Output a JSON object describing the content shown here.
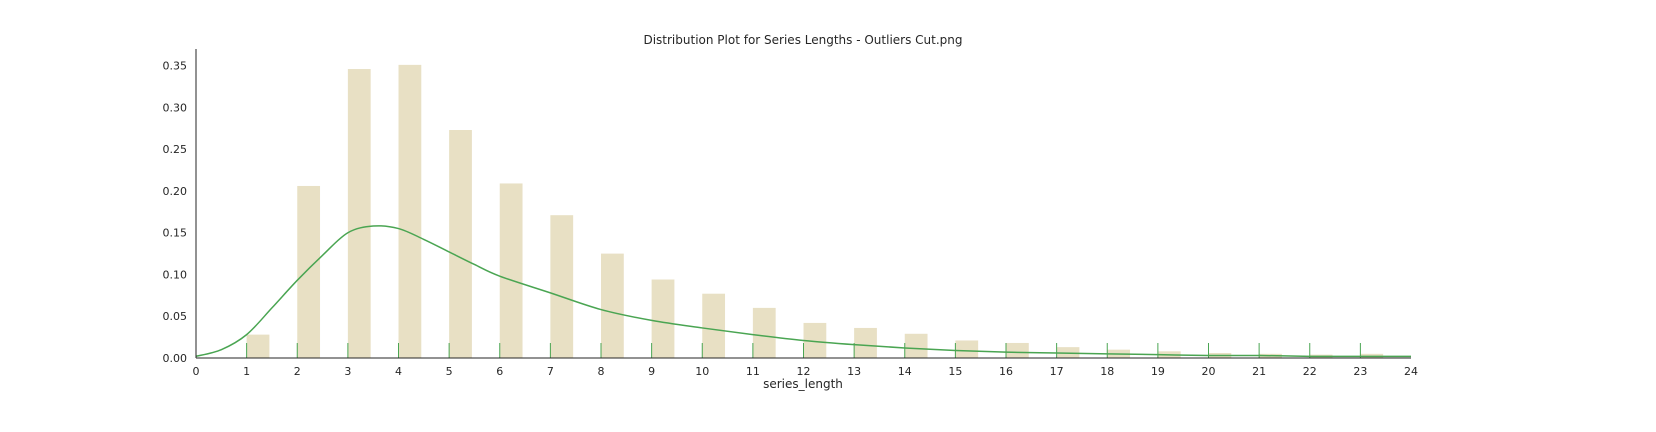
{
  "chart_data": {
    "type": "bar",
    "title": "Distribution Plot for Series Lengths - Outliers Cut.png",
    "xlabel": "series_length",
    "ylabel": "",
    "xlim": [
      0,
      24
    ],
    "ylim": [
      0,
      0.37
    ],
    "x_ticks": [
      0,
      1,
      2,
      3,
      4,
      5,
      6,
      7,
      8,
      9,
      10,
      11,
      12,
      13,
      14,
      15,
      16,
      17,
      18,
      19,
      20,
      21,
      22,
      23,
      24
    ],
    "y_ticks": [
      0.0,
      0.05,
      0.1,
      0.15,
      0.2,
      0.25,
      0.3,
      0.35
    ],
    "y_tick_labels": [
      "0.00",
      "0.05",
      "0.10",
      "0.15",
      "0.20",
      "0.25",
      "0.30",
      "0.35"
    ],
    "grid": false,
    "bars": {
      "x": [
        1,
        2,
        3,
        4,
        5,
        6,
        7,
        8,
        9,
        10,
        11,
        12,
        13,
        14,
        15,
        16,
        17,
        18,
        19,
        20,
        21,
        22,
        23
      ],
      "values": [
        0.028,
        0.206,
        0.346,
        0.351,
        0.273,
        0.209,
        0.171,
        0.125,
        0.094,
        0.077,
        0.06,
        0.042,
        0.036,
        0.029,
        0.021,
        0.018,
        0.013,
        0.01,
        0.008,
        0.006,
        0.005,
        0.004,
        0.005
      ],
      "width": 0.45,
      "color": "#e8e0c4"
    },
    "kde": {
      "x": [
        0,
        0.5,
        1,
        1.5,
        2,
        2.5,
        3,
        3.5,
        4,
        4.5,
        5,
        5.5,
        6,
        7,
        8,
        9,
        10,
        11,
        12,
        13,
        14,
        15,
        16,
        17,
        18,
        19,
        20,
        21,
        22,
        23,
        24
      ],
      "y": [
        0.002,
        0.01,
        0.028,
        0.06,
        0.093,
        0.123,
        0.15,
        0.158,
        0.155,
        0.142,
        0.127,
        0.112,
        0.098,
        0.078,
        0.058,
        0.045,
        0.036,
        0.028,
        0.021,
        0.016,
        0.012,
        0.009,
        0.007,
        0.006,
        0.005,
        0.004,
        0.003,
        0.003,
        0.002,
        0.002,
        0.002
      ],
      "color": "#4aa552"
    },
    "rug": {
      "x": [
        1,
        2,
        3,
        4,
        5,
        6,
        7,
        8,
        9,
        10,
        11,
        12,
        13,
        14,
        15,
        16,
        17,
        18,
        19,
        20,
        21,
        22,
        23
      ],
      "color": "#4aa552"
    }
  }
}
